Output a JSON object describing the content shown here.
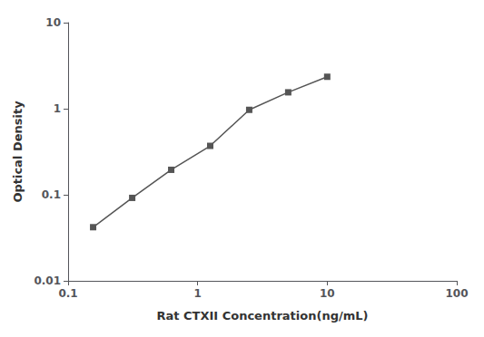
{
  "chart_data": {
    "type": "line",
    "x": [
      0.156,
      0.3125,
      0.625,
      1.25,
      2.5,
      5.0,
      10.0
    ],
    "values": [
      0.042,
      0.092,
      0.195,
      0.37,
      0.97,
      1.55,
      2.35
    ],
    "xlabel": "Rat CTXII Concentration(ng/mL)",
    "ylabel": "Optical Density",
    "xlim": [
      0.1,
      100
    ],
    "ylim": [
      0.01,
      10
    ],
    "xticks": [
      0.1,
      1,
      10,
      100
    ],
    "yticks": [
      0.01,
      0.1,
      1,
      10
    ],
    "log": true,
    "grid": false,
    "color": "#555555",
    "marker": "square"
  }
}
